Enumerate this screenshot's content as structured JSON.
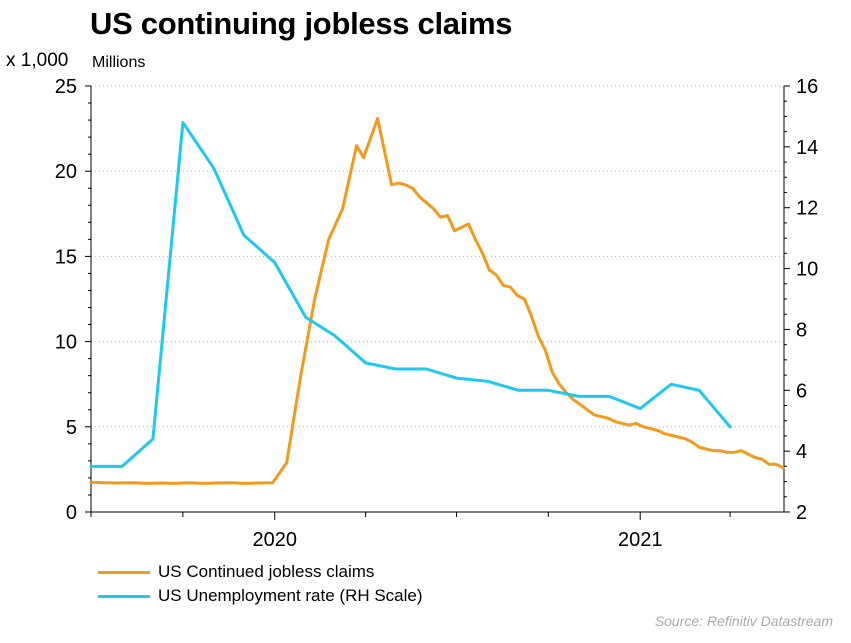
{
  "chart_data": {
    "type": "line",
    "title": "US continuing jobless claims",
    "ylabel_left": "x 1,000",
    "unit_label": "Millions",
    "source": "Source: Refinitiv Datastream",
    "y_left": {
      "ylim": [
        0,
        25
      ],
      "ticks": [
        "0",
        "5",
        "10",
        "15",
        "20",
        "25"
      ]
    },
    "y_right": {
      "ylim": [
        2,
        16
      ],
      "ticks": [
        "2",
        "4",
        "6",
        "8",
        "10",
        "12",
        "14",
        "16"
      ]
    },
    "x_ticks": [
      "2020",
      "2021"
    ],
    "x_range": [
      "2019-07-01",
      "2021-05-25"
    ],
    "grid": "horizontal-dotted",
    "legend_position": "bottom-left",
    "series": [
      {
        "name": "US Continued jobless claims",
        "axis": "left",
        "color": "#f29a1b",
        "x": [
          "2019-07-01",
          "2019-07-15",
          "2019-07-29",
          "2019-08-12",
          "2019-08-26",
          "2019-09-09",
          "2019-09-23",
          "2019-10-07",
          "2019-10-21",
          "2019-11-04",
          "2019-11-18",
          "2019-12-02",
          "2019-12-16",
          "2019-12-30",
          "2020-01-13",
          "2020-01-27",
          "2020-02-10",
          "2020-02-24",
          "2020-03-09",
          "2020-03-23",
          "2020-03-30",
          "2020-04-13",
          "2020-04-27",
          "2020-05-04",
          "2020-05-11",
          "2020-05-18",
          "2020-05-25",
          "2020-06-08",
          "2020-06-15",
          "2020-06-22",
          "2020-06-29",
          "2020-07-13",
          "2020-07-20",
          "2020-07-27",
          "2020-08-03",
          "2020-08-10",
          "2020-08-17",
          "2020-08-24",
          "2020-08-31",
          "2020-09-07",
          "2020-09-14",
          "2020-09-21",
          "2020-09-28",
          "2020-10-05",
          "2020-10-12",
          "2020-10-19",
          "2020-10-26",
          "2020-11-02",
          "2020-11-09",
          "2020-11-16",
          "2020-11-23",
          "2020-11-30",
          "2020-12-07",
          "2020-12-14",
          "2020-12-21",
          "2020-12-28",
          "2021-01-04",
          "2021-01-11",
          "2021-01-18",
          "2021-01-25",
          "2021-02-01",
          "2021-02-08",
          "2021-02-15",
          "2021-02-22",
          "2021-03-01",
          "2021-03-08",
          "2021-03-15",
          "2021-03-22",
          "2021-03-29",
          "2021-04-05",
          "2021-04-12",
          "2021-04-19",
          "2021-04-26",
          "2021-05-03",
          "2021-05-10",
          "2021-05-17",
          "2021-05-24"
        ],
        "values": [
          1.75,
          1.72,
          1.7,
          1.72,
          1.68,
          1.7,
          1.68,
          1.72,
          1.68,
          1.7,
          1.72,
          1.68,
          1.7,
          1.72,
          2.9,
          8.0,
          12.5,
          16.0,
          17.8,
          21.5,
          20.8,
          23.1,
          19.2,
          19.3,
          19.2,
          19.0,
          18.5,
          17.8,
          17.3,
          17.4,
          16.5,
          16.9,
          16.0,
          15.2,
          14.2,
          13.9,
          13.3,
          13.2,
          12.7,
          12.5,
          11.5,
          10.3,
          9.5,
          8.2,
          7.5,
          7.0,
          6.6,
          6.3,
          6.0,
          5.7,
          5.6,
          5.5,
          5.3,
          5.2,
          5.1,
          5.2,
          5.0,
          4.9,
          4.8,
          4.6,
          4.5,
          4.4,
          4.3,
          4.1,
          3.8,
          3.7,
          3.6,
          3.6,
          3.5,
          3.5,
          3.6,
          3.4,
          3.2,
          3.1,
          2.8,
          2.8,
          2.6
        ]
      },
      {
        "name": "US Unemployment rate (RH Scale)",
        "axis": "right",
        "color": "#1ec8ef",
        "x": [
          "2019-07-01",
          "2019-08-01",
          "2019-09-01",
          "2019-10-01",
          "2019-11-01",
          "2019-12-01",
          "2020-01-01",
          "2020-02-01",
          "2020-03-01",
          "2020-04-01",
          "2020-05-01",
          "2020-06-01",
          "2020-07-01",
          "2020-08-01",
          "2020-09-01",
          "2020-10-01",
          "2020-11-01",
          "2020-12-01",
          "2021-01-01",
          "2021-02-01",
          "2021-03-01",
          "2021-04-01"
        ],
        "values": [
          3.5,
          3.5,
          4.4,
          14.8,
          13.3,
          11.1,
          10.2,
          8.4,
          7.8,
          6.9,
          6.7,
          6.7,
          6.4,
          6.3,
          6.0,
          6.0,
          5.8,
          5.8,
          5.4,
          6.2,
          6.0,
          4.8
        ]
      }
    ]
  }
}
